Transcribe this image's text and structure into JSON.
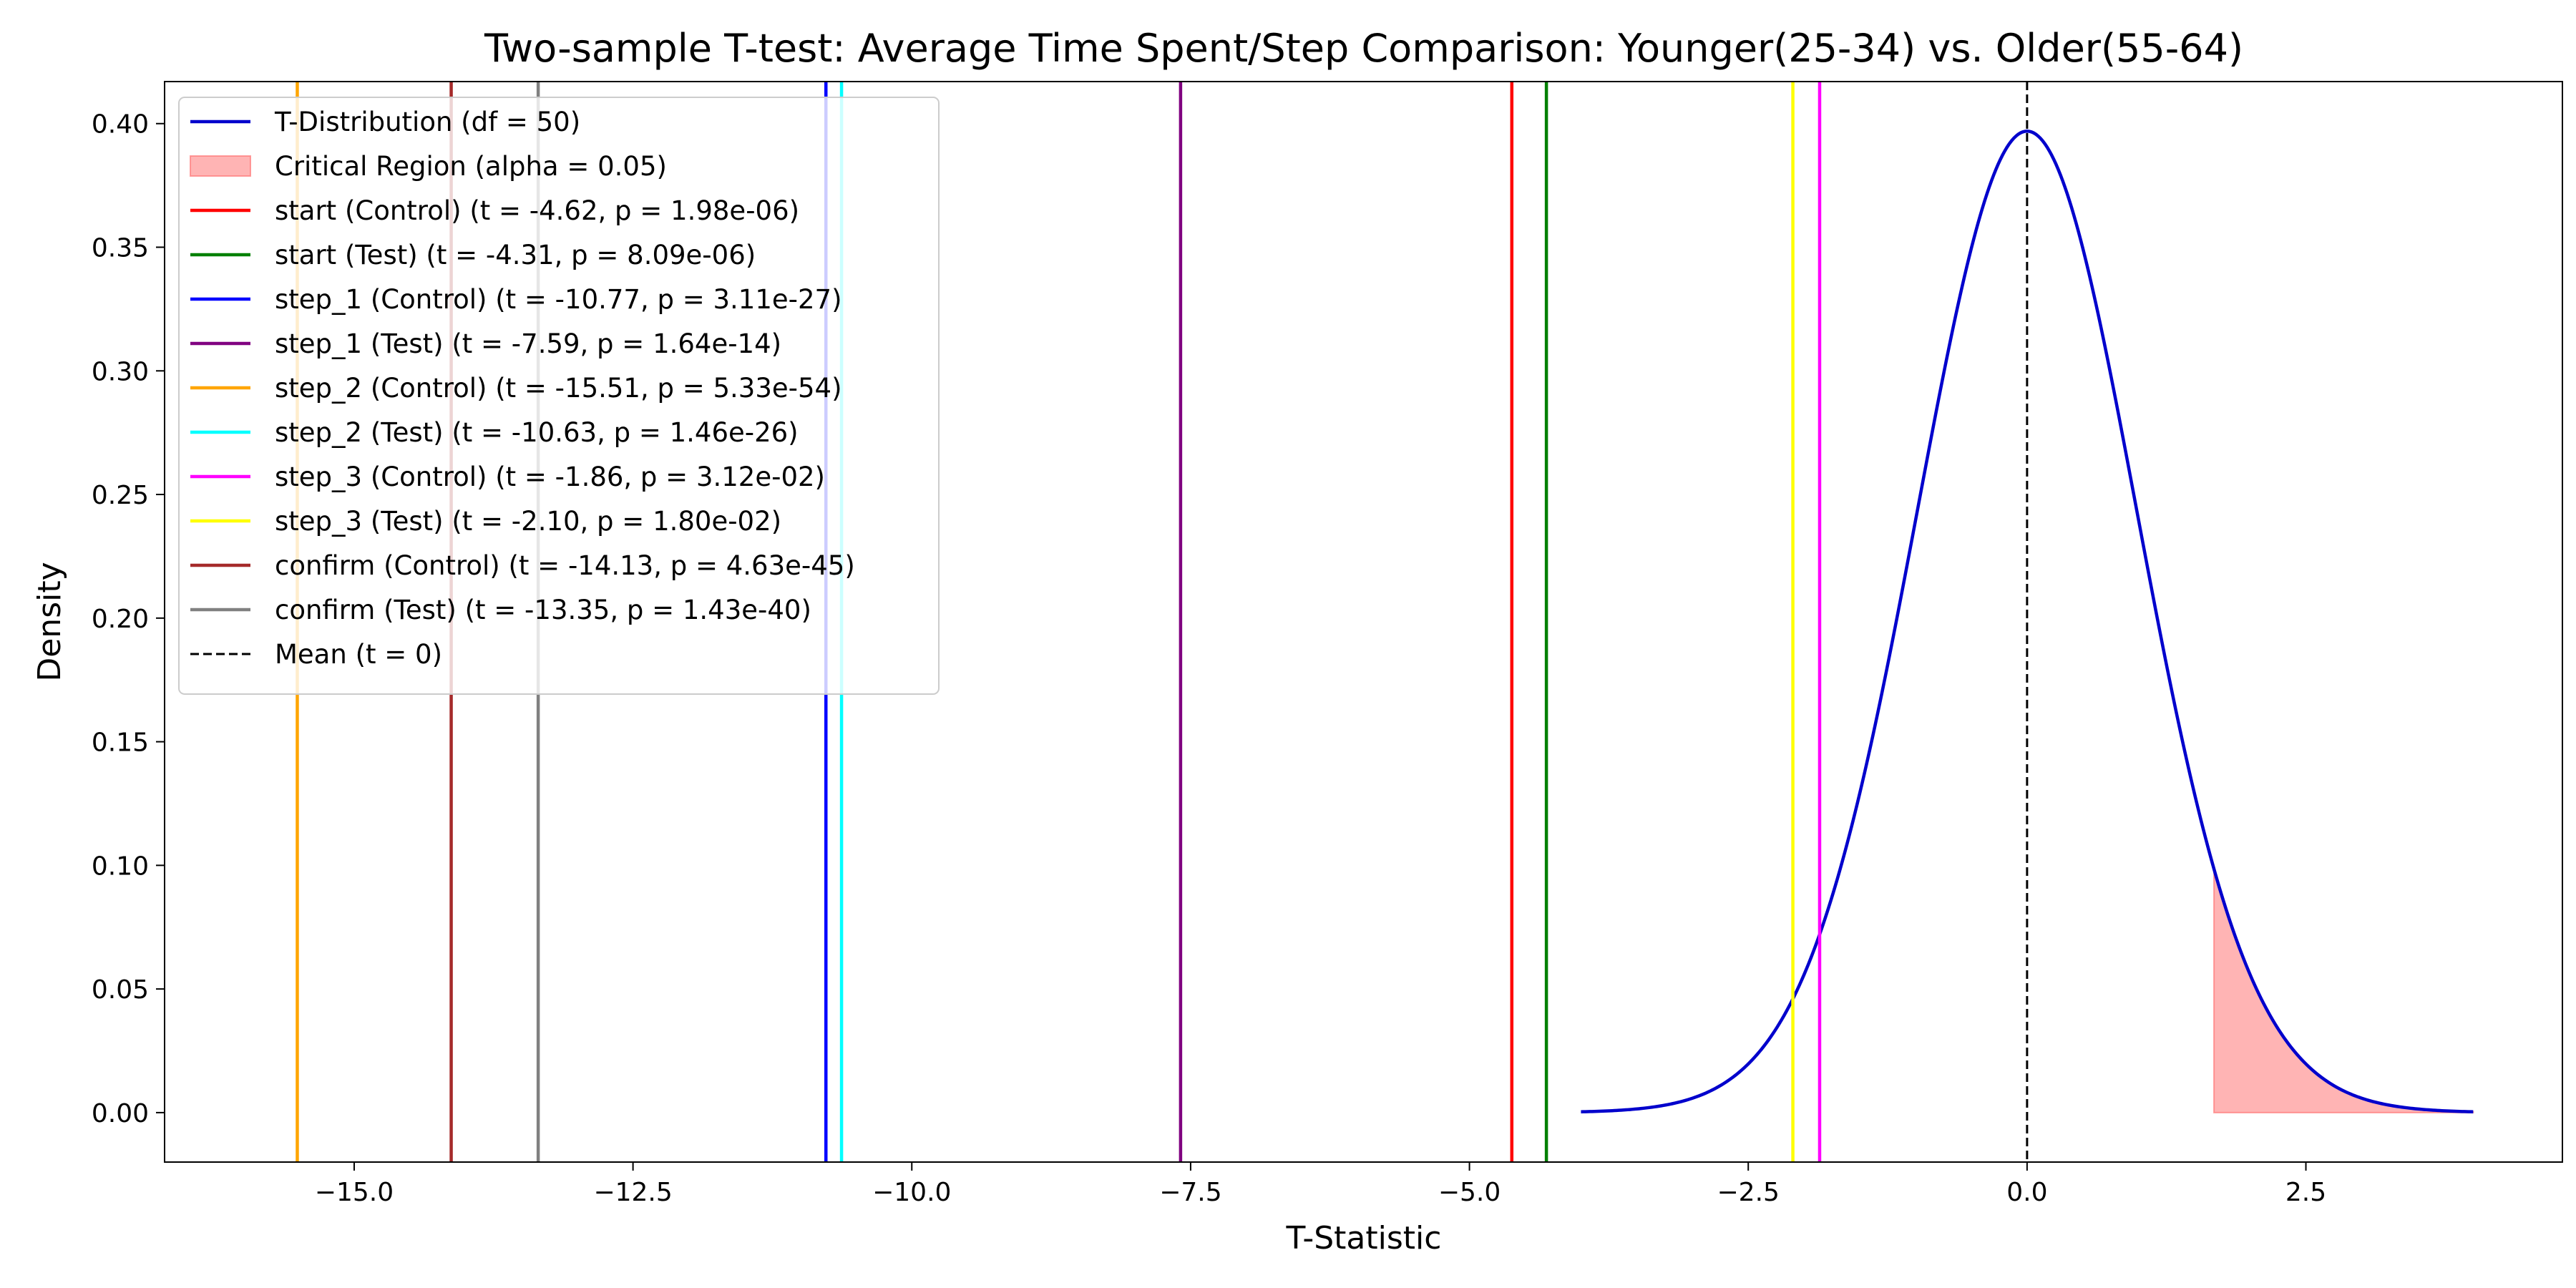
{
  "chart_data": {
    "type": "line",
    "title": "Two-sample T-test: Average Time Spent/Step Comparison: Younger(25-34) vs. Older(55-64)",
    "xlabel": "T-Statistic",
    "ylabel": "Density",
    "xlim": [
      -16.7,
      4.8
    ],
    "ylim": [
      -0.02,
      0.417
    ],
    "xticks": [
      -15.0,
      -12.5,
      -10.0,
      -7.5,
      -5.0,
      -2.5,
      0.0,
      2.5
    ],
    "xtick_labels": [
      "−15.0",
      "−12.5",
      "−10.0",
      "−7.5",
      "−5.0",
      "−2.5",
      "0.0",
      "2.5"
    ],
    "yticks": [
      0.0,
      0.05,
      0.1,
      0.15,
      0.2,
      0.25,
      0.3,
      0.35,
      0.4
    ],
    "ytick_labels": [
      "0.00",
      "0.05",
      "0.10",
      "0.15",
      "0.20",
      "0.25",
      "0.30",
      "0.35",
      "0.40"
    ],
    "grid": false,
    "legend_position": "top-left",
    "distribution": {
      "label": "T-Distribution (df = 50)",
      "df": 50,
      "x_range": [
        -4,
        4
      ],
      "color": "#0000cc"
    },
    "critical_region": {
      "label": "Critical Region (alpha = 0.05)",
      "x_start": 1.676,
      "x_end": 4,
      "color": "#ff7777"
    },
    "t_lines": [
      {
        "label": "start (Control) (t = -4.62, p = 1.98e-06)",
        "t": -4.62,
        "color": "#ff0000"
      },
      {
        "label": "start (Test) (t = -4.31, p = 8.09e-06)",
        "t": -4.31,
        "color": "#008000"
      },
      {
        "label": "step_1 (Control) (t = -10.77, p = 3.11e-27)",
        "t": -10.77,
        "color": "#0000ff"
      },
      {
        "label": "step_1 (Test) (t = -7.59, p = 1.64e-14)",
        "t": -7.59,
        "color": "#800080"
      },
      {
        "label": "step_2 (Control) (t = -15.51, p = 5.33e-54)",
        "t": -15.51,
        "color": "#ffa500"
      },
      {
        "label": "step_2 (Test) (t = -10.63, p = 1.46e-26)",
        "t": -10.63,
        "color": "#00ffff"
      },
      {
        "label": "step_3 (Control) (t = -1.86, p = 3.12e-02)",
        "t": -1.86,
        "color": "#ff00ff"
      },
      {
        "label": "step_3 (Test) (t = -2.10, p = 1.80e-02)",
        "t": -2.1,
        "color": "#ffff00"
      },
      {
        "label": "confirm (Control) (t = -14.13, p = 4.63e-45)",
        "t": -14.13,
        "color": "#a52a2a"
      },
      {
        "label": "confirm (Test) (t = -13.35, p = 1.43e-40)",
        "t": -13.35,
        "color": "#808080"
      }
    ],
    "mean_line": {
      "label": "Mean (t = 0)",
      "t": 0,
      "color": "#000000"
    }
  }
}
